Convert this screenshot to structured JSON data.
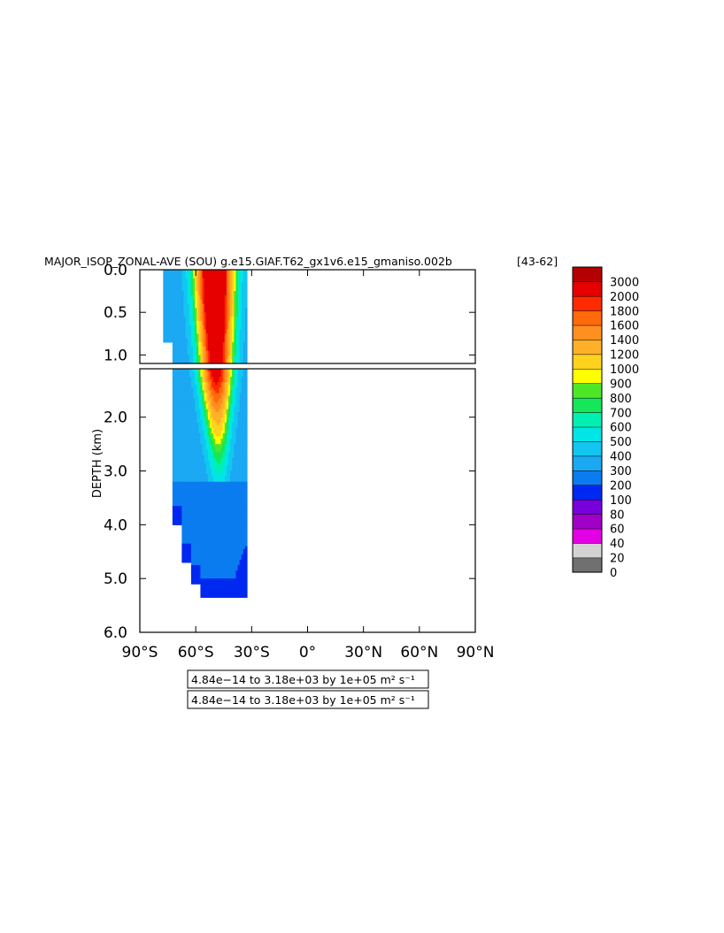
{
  "chart_data": {
    "type": "heatmap",
    "title": "MAJOR_ISOP_ZONAL-AVE (SOU) g.e15.GIAF.T62_gx1v6.e15_gmaniso.002b",
    "title_suffix": "[43-62]",
    "ylabel": "DEPTH (km)",
    "xlabel": "",
    "x_ticks": [
      "90°S",
      "60°S",
      "30°S",
      "0°",
      "30°N",
      "60°N",
      "90°N"
    ],
    "x_range": [
      -90,
      90
    ],
    "upper_panel": {
      "y_range": [
        0.0,
        1.1
      ],
      "y_ticks": [
        "0.0",
        "0.5",
        "1.0"
      ]
    },
    "lower_panel": {
      "y_range": [
        1.1,
        6.0
      ],
      "y_ticks": [
        "2.0",
        "3.0",
        "4.0",
        "5.0",
        "6.0"
      ]
    },
    "colorbar": {
      "levels": [
        0,
        20,
        40,
        60,
        80,
        100,
        200,
        300,
        400,
        500,
        600,
        700,
        800,
        900,
        1000,
        1200,
        1400,
        1600,
        1800,
        2000,
        3000
      ],
      "labels": [
        "0",
        "20",
        "40",
        "60",
        "80",
        "100",
        "200",
        "300",
        "400",
        "500",
        "600",
        "700",
        "800",
        "900",
        "1000",
        "1200",
        "1400",
        "1600",
        "1800",
        "2000",
        "3000"
      ],
      "colors": [
        "#707070",
        "#d3d3d3",
        "#e400e4",
        "#a000c8",
        "#7800dc",
        "#0028f0",
        "#0a7cf0",
        "#1aa9f2",
        "#12c6f0",
        "#00e6e6",
        "#00f0b4",
        "#16e65a",
        "#50e628",
        "#ffff00",
        "#ffd21e",
        "#ffb028",
        "#ff8f1e",
        "#ff6a0a",
        "#ff2a00",
        "#e60000",
        "#b40000"
      ]
    },
    "field_profile": [
      {
        "lat": -75,
        "bottom_km": 0.85,
        "value": 300
      },
      {
        "lat": -70,
        "bottom_km": 4.0,
        "value": 300
      },
      {
        "lat": -65,
        "bottom_km": 4.7,
        "value": 300
      },
      {
        "lat": -60,
        "bottom_km": 5.1,
        "value": 400
      },
      {
        "lat": -55,
        "bottom_km": 5.35,
        "value": 1000
      },
      {
        "lat": -50,
        "bottom_km": 5.35,
        "value": 3000
      },
      {
        "lat": -45,
        "bottom_km": 5.35,
        "value": 2000
      },
      {
        "lat": -40,
        "bottom_km": 5.35,
        "value": 800
      },
      {
        "lat": -35,
        "bottom_km": 5.35,
        "value": 300
      }
    ],
    "annotations": [
      "4.84e−14 to 3.18e+03 by 1e+05 m² s⁻¹",
      "4.84e−14 to 3.18e+03 by 1e+05 m² s⁻¹"
    ]
  }
}
